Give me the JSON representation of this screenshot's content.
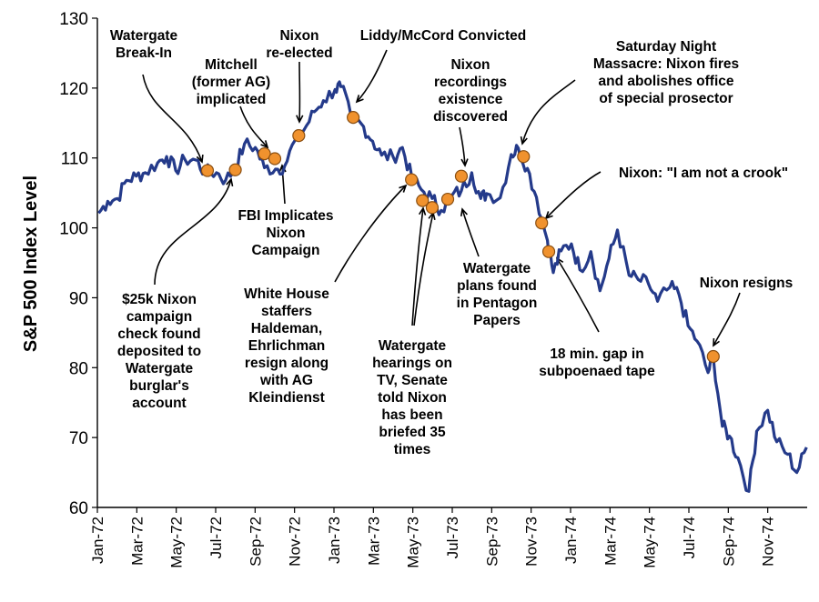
{
  "chart_data": {
    "type": "line",
    "title": "",
    "xlabel": "",
    "ylabel": "S&P 500 Index Level",
    "ylim": [
      60,
      130
    ],
    "yticks": [
      60,
      70,
      80,
      90,
      100,
      110,
      120,
      130
    ],
    "xticks": [
      "Jan-72",
      "Mar-72",
      "May-72",
      "Jul-72",
      "Sep-72",
      "Nov-72",
      "Jan-73",
      "Mar-73",
      "May-73",
      "Jul-73",
      "Sep-73",
      "Nov-73",
      "Jan-74",
      "Mar-74",
      "May-74",
      "Jul-74",
      "Sep-74",
      "Nov-74"
    ],
    "grid": false,
    "legend": "none",
    "colors": {
      "line": "#243a8a",
      "marker": "#f0922e",
      "marker_edge": "#8a4e10"
    },
    "series": [
      {
        "x": [
          "1972-01-03",
          "1972-01-17",
          "1972-02-01",
          "1972-02-15",
          "1972-03-01",
          "1972-03-15",
          "1972-04-03",
          "1972-04-17",
          "1972-05-01",
          "1972-05-15",
          "1972-06-01",
          "1972-06-15",
          "1972-07-03",
          "1972-07-17",
          "1972-08-01",
          "1972-08-15",
          "1972-09-01",
          "1972-09-15",
          "1972-10-02",
          "1972-10-16",
          "1972-11-01",
          "1972-11-15",
          "1972-12-01",
          "1972-12-15",
          "1973-01-02",
          "1973-01-11",
          "1973-01-26",
          "1973-02-15",
          "1973-03-01",
          "1973-03-15",
          "1973-04-02",
          "1973-04-16",
          "1973-05-01",
          "1973-05-15",
          "1973-06-01",
          "1973-06-15",
          "1973-07-02",
          "1973-07-16",
          "1973-08-01",
          "1973-08-15",
          "1973-08-24",
          "1973-09-14",
          "1973-10-01",
          "1973-10-12",
          "1973-10-26",
          "1973-11-09",
          "1973-11-26",
          "1973-12-05",
          "1973-12-17",
          "1974-01-02",
          "1974-01-15",
          "1974-02-01",
          "1974-02-15",
          "1974-03-01",
          "1974-03-14",
          "1974-04-01",
          "1974-04-15",
          "1974-05-01",
          "1974-05-15",
          "1974-06-03",
          "1974-06-17",
          "1974-07-01",
          "1974-07-15",
          "1974-08-01",
          "1974-08-09",
          "1974-08-23",
          "1974-09-03",
          "1974-09-16",
          "1974-10-03",
          "1974-10-15",
          "1974-11-01",
          "1974-11-15",
          "1974-12-02",
          "1974-12-16",
          "1974-12-31"
        ],
        "values": [
          102.1,
          103.8,
          104.2,
          106.8,
          107.4,
          107.9,
          109.3,
          110.2,
          108.2,
          109.8,
          109.7,
          108.0,
          107.9,
          106.8,
          108.6,
          112.0,
          111.5,
          108.6,
          108.4,
          108.8,
          112.5,
          114.0,
          116.6,
          118.2,
          119.8,
          120.2,
          116.3,
          114.5,
          112.4,
          110.4,
          110.1,
          111.5,
          106.9,
          105.5,
          104.2,
          102.5,
          104.7,
          105.3,
          107.9,
          104.2,
          104.9,
          104.3,
          110.5,
          111.4,
          108.5,
          104.4,
          98.2,
          93.6,
          96.7,
          97.7,
          94.0,
          96.6,
          91.0,
          95.6,
          99.7,
          93.2,
          92.6,
          92.0,
          89.5,
          91.5,
          90.5,
          86.0,
          83.8,
          79.3,
          81.6,
          71.6,
          70.2,
          67.1,
          62.3,
          70.9,
          73.9,
          69.4,
          67.6,
          65.0,
          68.6
        ]
      }
    ],
    "events": [
      {
        "date": "1972-06-19",
        "value": 108.2,
        "label": [
          "Watergate",
          "Break-In"
        ]
      },
      {
        "date": "1972-08-01",
        "value": 108.3,
        "label": [
          "$25k Nixon",
          "campaign",
          "check found",
          "deposited to",
          "Watergate",
          "burglar's",
          "account"
        ]
      },
      {
        "date": "1972-09-15",
        "value": 110.6,
        "label": [
          "Mitchell",
          "(former AG)",
          "implicated"
        ]
      },
      {
        "date": "1972-10-01",
        "value": 109.9,
        "label": [
          "FBI Implicates",
          "Nixon",
          "Campaign"
        ]
      },
      {
        "date": "1972-11-07",
        "value": 113.2,
        "label": [
          "Nixon",
          "re-elected"
        ]
      },
      {
        "date": "1973-01-30",
        "value": 115.8,
        "label": [
          "Liddy/McCord Convicted"
        ]
      },
      {
        "date": "1973-04-30",
        "value": 106.9,
        "label": [
          "White House",
          "staffers",
          "Haldeman,",
          "Ehrlichman",
          "resign along",
          "with AG",
          "Kleindienst"
        ]
      },
      {
        "date": "1973-05-17",
        "value": 103.9,
        "label": [
          "Watergate",
          "hearings on",
          "TV, Senate",
          "told Nixon",
          "has been",
          "briefed 35",
          "times"
        ]
      },
      {
        "date": "1973-06-01",
        "value": 102.9,
        "label": []
      },
      {
        "date": "1973-06-25",
        "value": 104.1,
        "label": [
          "Watergate",
          "plans found",
          "in Pentagon",
          "Papers"
        ]
      },
      {
        "date": "1973-07-16",
        "value": 107.4,
        "label": [
          "Nixon",
          "recordings",
          "existence",
          "discovered"
        ]
      },
      {
        "date": "1973-10-20",
        "value": 110.2,
        "label": [
          "Saturday Night",
          "Massacre: Nixon fires",
          "and abolishes office",
          "of special prosector"
        ]
      },
      {
        "date": "1973-11-17",
        "value": 100.7,
        "label": [
          "Nixon: \"I am not a crook\""
        ]
      },
      {
        "date": "1973-11-28",
        "value": 96.6,
        "label": [
          "18 min. gap in",
          "subpoenaed tape"
        ]
      },
      {
        "date": "1974-08-09",
        "value": 81.6,
        "label": [
          "Nixon resigns"
        ]
      }
    ]
  }
}
